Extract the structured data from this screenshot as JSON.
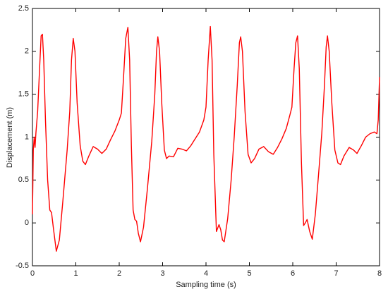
{
  "chart_data": {
    "type": "line",
    "xlabel": "Sampling time (s)",
    "ylabel": "Displacement (m)",
    "color": "#ff0000",
    "x": [
      0,
      0.02,
      0.04,
      0.06,
      0.08,
      0.12,
      0.16,
      0.2,
      0.23,
      0.26,
      0.3,
      0.35,
      0.4,
      0.44,
      0.48,
      0.55,
      0.62,
      0.7,
      0.8,
      0.86,
      0.9,
      0.94,
      0.98,
      1.03,
      1.1,
      1.16,
      1.22,
      1.3,
      1.4,
      1.5,
      1.6,
      1.7,
      1.8,
      1.9,
      2.0,
      2.05,
      2.1,
      2.15,
      2.2,
      2.24,
      2.28,
      2.32,
      2.36,
      2.4,
      2.44,
      2.49,
      2.56,
      2.65,
      2.75,
      2.82,
      2.86,
      2.89,
      2.93,
      2.98,
      3.04,
      3.09,
      3.15,
      3.25,
      3.35,
      3.45,
      3.55,
      3.65,
      3.75,
      3.85,
      3.95,
      4.0,
      4.05,
      4.1,
      4.14,
      4.18,
      4.24,
      4.3,
      4.34,
      4.38,
      4.42,
      4.5,
      4.58,
      4.65,
      4.72,
      4.77,
      4.8,
      4.84,
      4.9,
      4.97,
      5.04,
      5.12,
      5.22,
      5.33,
      5.44,
      5.55,
      5.65,
      5.75,
      5.85,
      5.93,
      5.98,
      6.03,
      6.07,
      6.11,
      6.15,
      6.2,
      6.25,
      6.29,
      6.33,
      6.39,
      6.45,
      6.52,
      6.6,
      6.67,
      6.73,
      6.77,
      6.8,
      6.84,
      6.9,
      6.97,
      7.04,
      7.1,
      7.18,
      7.3,
      7.4,
      7.48,
      7.58,
      7.68,
      7.78,
      7.88,
      7.94,
      7.97,
      8.0
    ],
    "values": [
      0.1,
      0.85,
      1.0,
      0.88,
      1.05,
      1.3,
      1.75,
      2.18,
      2.2,
      1.9,
      1.2,
      0.5,
      0.15,
      0.12,
      -0.05,
      -0.33,
      -0.2,
      0.25,
      0.85,
      1.3,
      1.9,
      2.15,
      2.0,
      1.4,
      0.9,
      0.72,
      0.68,
      0.78,
      0.89,
      0.86,
      0.81,
      0.86,
      0.97,
      1.07,
      1.2,
      1.28,
      1.7,
      2.15,
      2.28,
      1.9,
      0.9,
      0.15,
      0.04,
      0.02,
      -0.12,
      -0.22,
      -0.05,
      0.4,
      0.95,
      1.5,
      2.0,
      2.17,
      2.0,
      1.4,
      0.85,
      0.75,
      0.78,
      0.77,
      0.87,
      0.86,
      0.84,
      0.9,
      0.98,
      1.06,
      1.2,
      1.35,
      1.9,
      2.29,
      1.9,
      0.8,
      -0.1,
      -0.02,
      -0.08,
      -0.2,
      -0.22,
      0.05,
      0.5,
      1.0,
      1.6,
      2.1,
      2.17,
      2.0,
      1.3,
      0.8,
      0.7,
      0.75,
      0.86,
      0.89,
      0.83,
      0.8,
      0.88,
      0.98,
      1.1,
      1.25,
      1.35,
      1.8,
      2.1,
      2.18,
      1.8,
      0.7,
      -0.03,
      0.0,
      0.04,
      -0.1,
      -0.19,
      0.1,
      0.6,
      1.05,
      1.6,
      2.05,
      2.18,
      2.0,
      1.4,
      0.85,
      0.7,
      0.68,
      0.78,
      0.88,
      0.85,
      0.81,
      0.9,
      1.0,
      1.04,
      1.06,
      1.04,
      1.2,
      1.7
    ],
    "xlim": [
      0,
      8
    ],
    "xticks": [
      0,
      1,
      2,
      3,
      4,
      5,
      6,
      7,
      8
    ],
    "ylim": [
      -0.5,
      2.5
    ],
    "yticks": [
      -0.5,
      0,
      0.5,
      1,
      1.5,
      2,
      2.5
    ],
    "grid": false
  }
}
